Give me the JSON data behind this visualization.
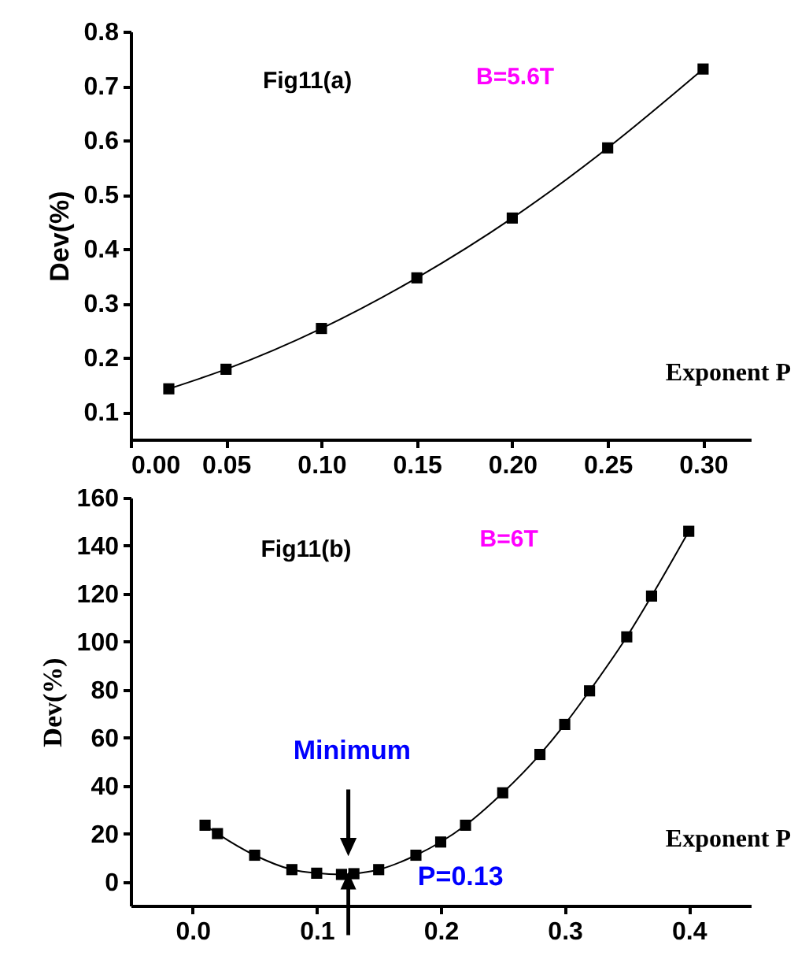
{
  "chart_data": [
    {
      "type": "line",
      "marker": "square",
      "color": "#000000",
      "xlabel": "Exponent P",
      "ylabel": "Dev(%)",
      "annotations": [
        "Fig11(a)",
        "B=5.6T"
      ],
      "x": [
        0.02,
        0.05,
        0.1,
        0.15,
        0.2,
        0.25,
        0.3
      ],
      "values": [
        0.143,
        0.179,
        0.254,
        0.347,
        0.457,
        0.586,
        0.731
      ],
      "xlim": [
        0,
        0.325
      ],
      "xticks": [
        {
          "value": 0,
          "label": "0.00"
        },
        {
          "value": 0.05,
          "label": "0.05"
        },
        {
          "value": 0.1,
          "label": "0.10"
        },
        {
          "value": 0.15,
          "label": "0.15"
        },
        {
          "value": 0.2,
          "label": "0.20"
        },
        {
          "value": 0.25,
          "label": "0.25"
        },
        {
          "value": 0.3,
          "label": "0.30"
        }
      ],
      "ylim": [
        0.05,
        0.8
      ],
      "yticks": [
        0.1,
        0.2,
        0.3,
        0.4,
        0.5,
        0.6,
        0.7,
        0.8
      ]
    },
    {
      "type": "line",
      "marker": "square",
      "color": "#000000",
      "xlabel": "Exponent P",
      "ylabel": "Dev(%)",
      "annotations": [
        "Fig11(b)",
        "B=6T",
        "Minimum",
        "P=0.13"
      ],
      "x": [
        0.01,
        0.02,
        0.05,
        0.08,
        0.1,
        0.12,
        0.13,
        0.15,
        0.18,
        0.2,
        0.22,
        0.25,
        0.28,
        0.3,
        0.32,
        0.35,
        0.37,
        0.4
      ],
      "values": [
        23.5,
        20,
        11,
        5,
        3.5,
        3,
        3.3,
        5,
        11,
        16.5,
        23.5,
        37,
        53,
        65.5,
        79.5,
        102,
        119,
        146
      ],
      "xlim": [
        -0.05,
        0.45
      ],
      "xticks": [
        {
          "value": 0,
          "label": "0.0"
        },
        {
          "value": 0.1,
          "label": "0.1"
        },
        {
          "value": 0.2,
          "label": "0.2"
        },
        {
          "value": 0.3,
          "label": "0.3"
        },
        {
          "value": 0.4,
          "label": "0.4"
        }
      ],
      "ylim": [
        -10,
        160
      ],
      "yticks": [
        0,
        20,
        40,
        60,
        80,
        100,
        120,
        140,
        160
      ]
    }
  ]
}
